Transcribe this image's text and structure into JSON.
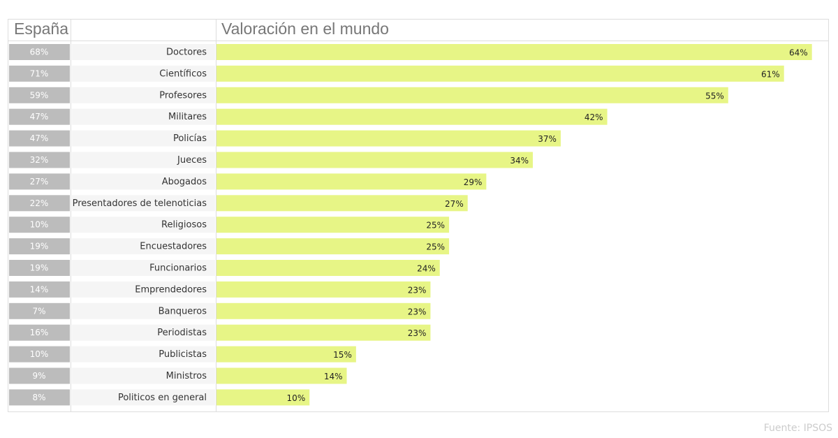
{
  "chart_data": {
    "type": "bar",
    "orientation": "horizontal",
    "title": "Valoración en el mundo",
    "source": "Fuente: IPSOS",
    "categories": [
      "Doctores",
      "Científicos",
      "Profesores",
      "Militares",
      "Policías",
      "Jueces",
      "Abogados",
      "Presentadores de telenoticias",
      "Religiosos",
      "Encuestadores",
      "Funcionarios",
      "Emprendedores",
      "Banqueros",
      "Periodistas",
      "Publicistas",
      "Ministros",
      "Politicos en general"
    ],
    "series": [
      {
        "name": "España",
        "color": "#bcbcbc",
        "values": [
          68,
          71,
          59,
          47,
          47,
          32,
          27,
          22,
          10,
          19,
          19,
          14,
          7,
          16,
          10,
          9,
          8
        ],
        "value_labels": [
          "68%",
          "71%",
          "59%",
          "47%",
          "47%",
          "32%",
          "27%",
          "22%",
          "10%",
          "19%",
          "19%",
          "14%",
          "7%",
          "16%",
          "10%",
          "9%",
          "8%"
        ]
      },
      {
        "name": "Valoración en el mundo",
        "color": "#e7f586",
        "values": [
          64,
          61,
          55,
          42,
          37,
          34,
          29,
          27,
          25,
          25,
          24,
          23,
          23,
          23,
          15,
          14,
          10
        ],
        "value_labels": [
          "64%",
          "61%",
          "55%",
          "42%",
          "37%",
          "34%",
          "29%",
          "27%",
          "25%",
          "25%",
          "24%",
          "23%",
          "23%",
          "23%",
          "15%",
          "14%",
          "10%"
        ]
      }
    ],
    "xlim": [
      0,
      65
    ]
  }
}
